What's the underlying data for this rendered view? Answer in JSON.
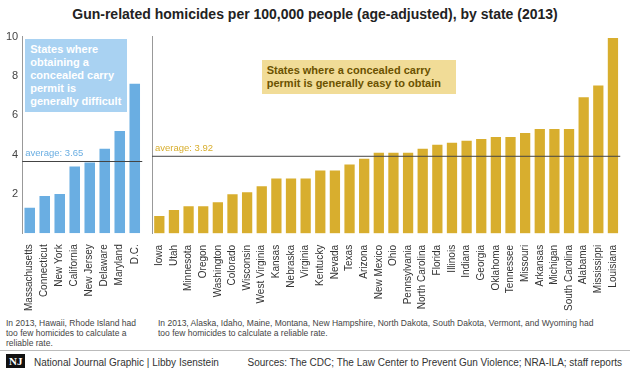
{
  "title": "Gun-related homicides per 100,000 people (age-adjusted), by state (2013)",
  "chart_data": [
    {
      "type": "bar",
      "annotation": "States where obtaining a concealed carry permit is generally difficult",
      "categories": [
        "Massachusetts",
        "Connecticut",
        "New York",
        "California",
        "New Jersey",
        "Delaware",
        "Maryland",
        "D.C."
      ],
      "values": [
        1.3,
        1.9,
        2.0,
        3.4,
        3.6,
        4.3,
        5.2,
        7.6
      ],
      "color": "#6aaee2",
      "average": {
        "value": 3.65,
        "label": "average: 3.65"
      },
      "ylim": [
        0,
        10
      ],
      "yticks": [
        2,
        4,
        6,
        8,
        10
      ],
      "grid": false,
      "note": "In 2013, Hawaii, Rhode Island had too few homicides to calculate a reliable rate."
    },
    {
      "type": "bar",
      "annotation": "States where a concealed carry permit is generally easy to obtain",
      "categories": [
        "Iowa",
        "Utah",
        "Minnesota",
        "Oregon",
        "Washington",
        "Colorado",
        "Wisconsin",
        "West Virginia",
        "Kansas",
        "Nebraska",
        "Virginia",
        "Kentucky",
        "Nevada",
        "Texas",
        "Arizona",
        "New Mexico",
        "Ohio",
        "Pennsylvania",
        "North Carolina",
        "Florida",
        "Illinois",
        "Indiana",
        "Georgia",
        "Oklahoma",
        "Tennessee",
        "Missouri",
        "Arkansas",
        "Michigan",
        "South Carolina",
        "Alabama",
        "Mississippi",
        "Louisiana"
      ],
      "values": [
        0.9,
        1.2,
        1.4,
        1.4,
        1.6,
        2.0,
        2.1,
        2.4,
        2.8,
        2.8,
        2.8,
        3.2,
        3.2,
        3.5,
        3.8,
        4.1,
        4.1,
        4.1,
        4.3,
        4.5,
        4.6,
        4.7,
        4.8,
        4.9,
        4.9,
        5.1,
        5.3,
        5.3,
        5.3,
        6.9,
        7.5,
        9.9
      ],
      "color": "#d8ae2e",
      "average": {
        "value": 3.92,
        "label": "average: 3.92"
      },
      "ylim": [
        0,
        10
      ],
      "grid": false,
      "tick_labels": "x",
      "note": "In 2013, Alaska, Idaho, Maine, Montana, New Hampshire, North Dakota, South Dakota, Vermont, and Wyoming had too few homicides to calculate a reliable rate."
    }
  ],
  "footer": {
    "logo": "NJ",
    "credit": "National Journal Graphic | Libby Isenstein",
    "sources": "Sources: The CDC; The Law Center to Prevent Gun Violence; NRA-ILA; staff reports"
  }
}
